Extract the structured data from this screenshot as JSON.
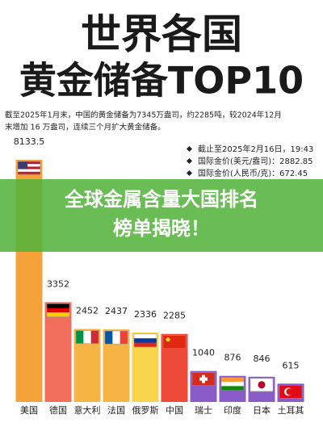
{
  "chart_data": {
    "type": "bar",
    "title": [
      "世界各国",
      "黄金储备TOP10"
    ],
    "subtitle": [
      "截至2025年1月末，中国的黄金储备为7345万盎司，约2285吨，较2024年12月",
      "末增加 16 万盎司，连续三个月扩大黄金储备。"
    ],
    "notes": [
      "截止至2025年2月16日，19:43",
      "国际金价(美元/盎司)：2882.85",
      "国际金价(人民币/克)：672.45"
    ],
    "banner": [
      "全球金属含量大国排名",
      "榜单揭晓！"
    ],
    "categories": [
      "美国",
      "德国",
      "意大利",
      "法国",
      "俄罗斯",
      "中国",
      "瑞士",
      "印度",
      "日本",
      "土耳其"
    ],
    "values": [
      8133.5,
      3352,
      2452,
      2437,
      2336,
      2285,
      1040,
      876,
      846,
      615
    ],
    "colors": [
      "#f3a33a",
      "#f26e5c",
      "#f6b444",
      "#f6b444",
      "#f7d44c",
      "#ee4a3a",
      "#8a5cc8",
      "#8a5cc8",
      "#8a5cc8",
      "#8a5cc8"
    ]
  }
}
